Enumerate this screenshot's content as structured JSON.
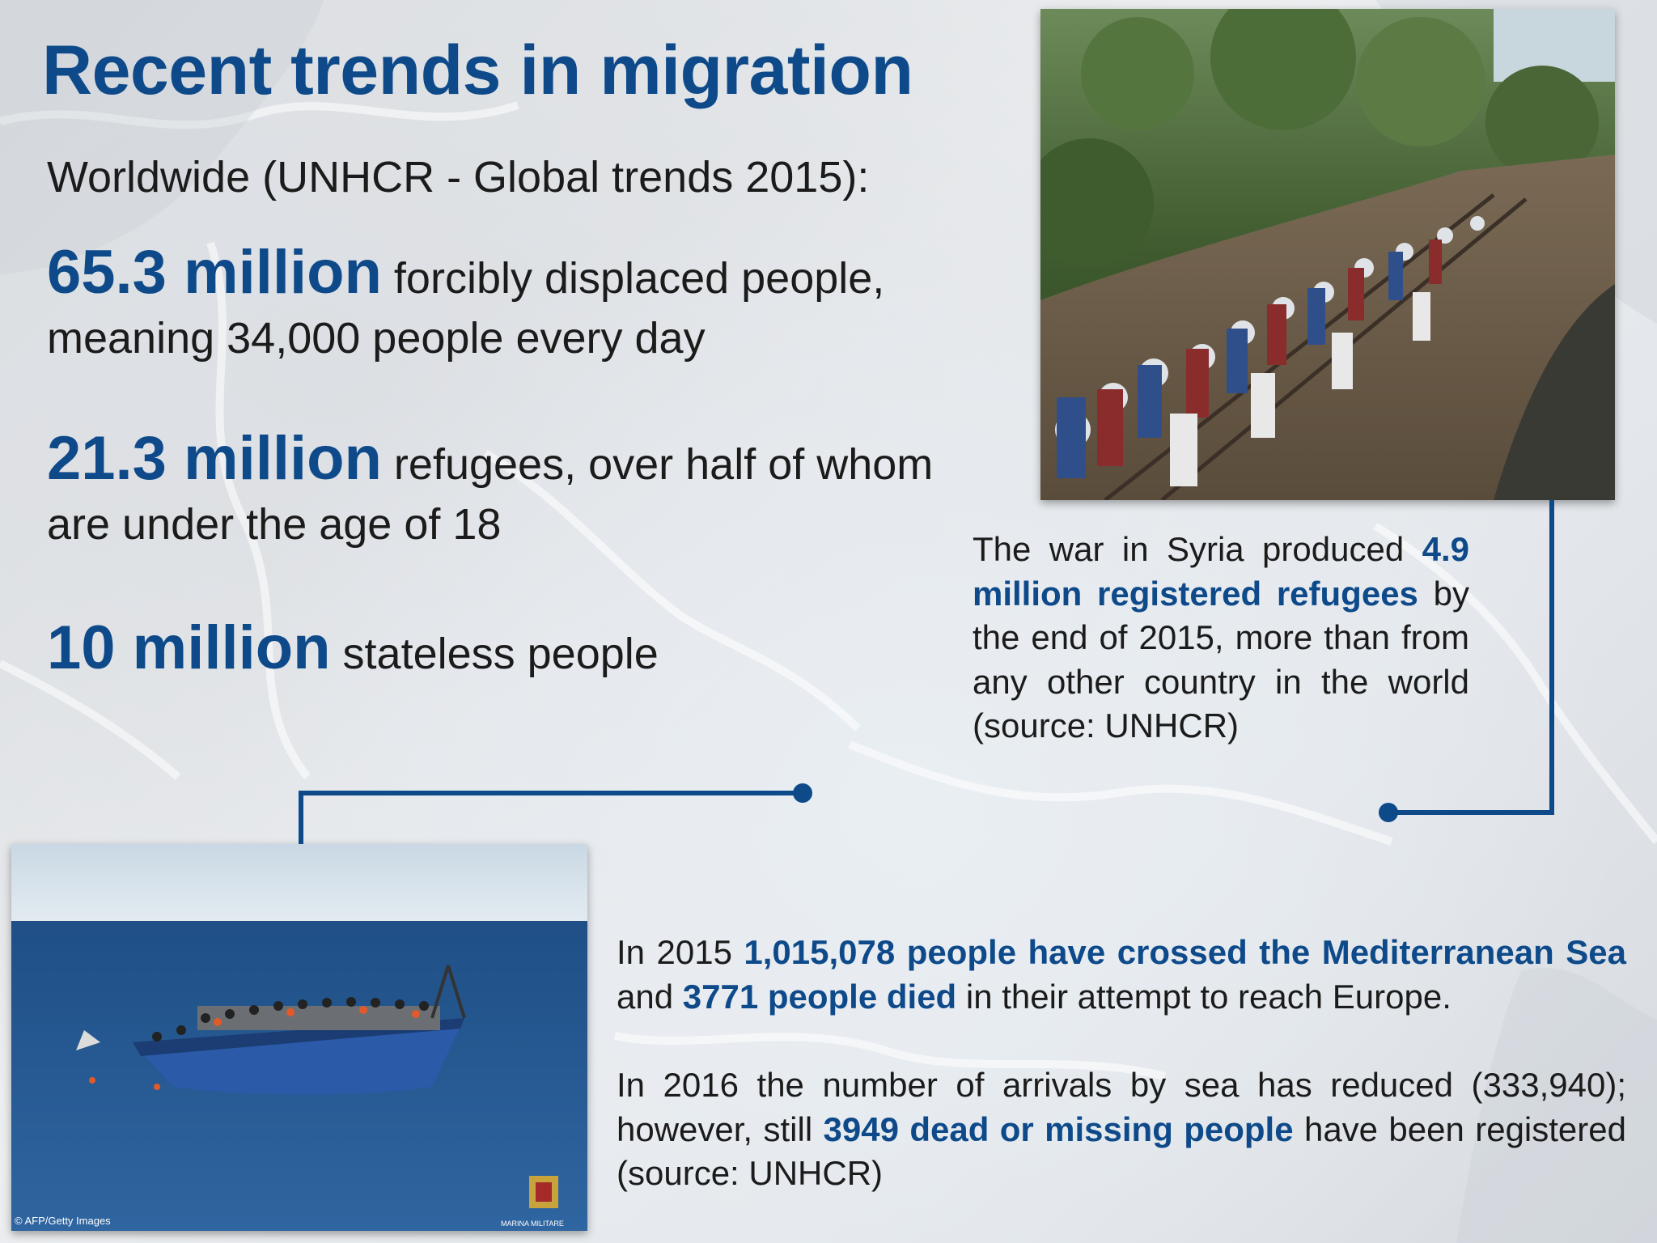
{
  "title": "Recent trends in migration",
  "subtitle": "Worldwide (UNHCR - Global trends 2015):",
  "stats": [
    {
      "big": "65.3 million",
      "rest": " forcibly displaced people, meaning 34,000 people every day"
    },
    {
      "big": "21.3 million",
      "rest": " refugees, over half of whom are under the age of 18"
    },
    {
      "big": "10 million",
      "rest": " stateless people"
    }
  ],
  "syria_caption": {
    "pre": "The war in Syria produced ",
    "highlight": "4.9 million registered refugees",
    "post": " by the end of 2015, more than from any other country in the world (source: UNHCR)"
  },
  "paragraph_2015": {
    "pre": "In 2015 ",
    "highlight1": "1,015,078 people have crossed the Mediterranean Sea",
    "mid": " and ",
    "highlight2": "3771 people died",
    "post": " in their attempt to reach Europe."
  },
  "paragraph_2016": {
    "pre": "In 2016 the number of arrivals by sea has reduced (333,940); however, still ",
    "highlight": "3949 dead or missing people",
    "post": " have been registered (source: UNHCR)"
  },
  "photo_credits": {
    "boat_left": "© AFP/Getty Images",
    "boat_right": "MARINA MILITARE"
  },
  "colors": {
    "accent": "#0e4a8a",
    "text": "#1b1b1b"
  }
}
